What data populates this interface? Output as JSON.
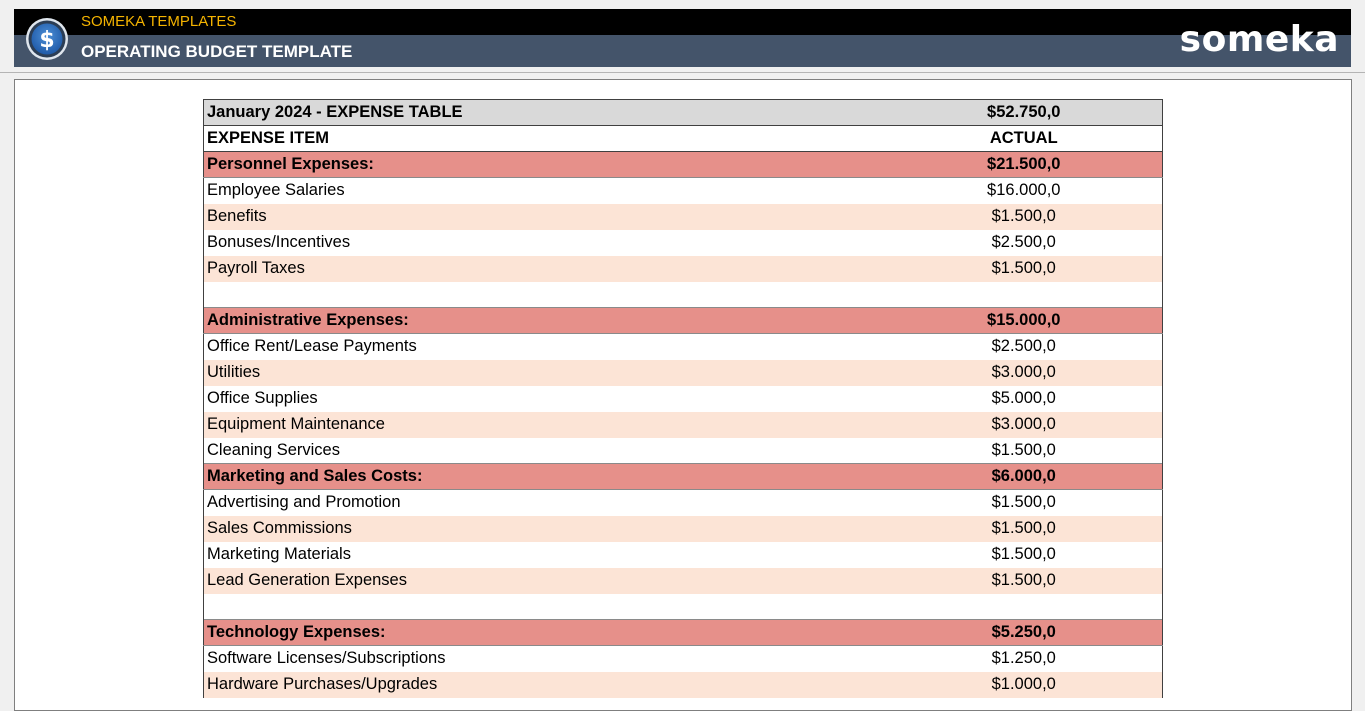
{
  "header": {
    "brand": "SOMEKA TEMPLATES",
    "title": "OPERATING BUDGET TEMPLATE",
    "logo_text": "someka",
    "icon": "dollar-coin-icon",
    "colors": {
      "black": "#000000",
      "slate": "#44546a",
      "brand": "#f5b400",
      "category": "#e6908a",
      "alt_row": "#fce4d6"
    }
  },
  "table": {
    "title": "January 2024 - EXPENSE TABLE",
    "total": "$52.750,0",
    "col_item": "EXPENSE ITEM",
    "col_actual": "ACTUAL",
    "rows": [
      {
        "type": "cat",
        "label": "Personnel Expenses:",
        "value": "$21.500,0"
      },
      {
        "type": "item",
        "label": "Employee Salaries",
        "value": "$16.000,0"
      },
      {
        "type": "item",
        "label": "Benefits",
        "value": "$1.500,0"
      },
      {
        "type": "item",
        "label": "Bonuses/Incentives",
        "value": "$2.500,0"
      },
      {
        "type": "item",
        "label": "Payroll Taxes",
        "value": "$1.500,0"
      },
      {
        "type": "blank",
        "label": "",
        "value": ""
      },
      {
        "type": "cat",
        "label": "Administrative Expenses:",
        "value": "$15.000,0"
      },
      {
        "type": "item",
        "label": "Office Rent/Lease Payments",
        "value": "$2.500,0"
      },
      {
        "type": "item",
        "label": "Utilities",
        "value": "$3.000,0"
      },
      {
        "type": "item",
        "label": "Office Supplies",
        "value": "$5.000,0"
      },
      {
        "type": "item",
        "label": "Equipment Maintenance",
        "value": "$3.000,0"
      },
      {
        "type": "item",
        "label": "Cleaning Services",
        "value": "$1.500,0"
      },
      {
        "type": "cat",
        "label": "Marketing and Sales Costs:",
        "value": "$6.000,0"
      },
      {
        "type": "item",
        "label": "Advertising and Promotion",
        "value": "$1.500,0"
      },
      {
        "type": "item",
        "label": "Sales Commissions",
        "value": "$1.500,0"
      },
      {
        "type": "item",
        "label": "Marketing Materials",
        "value": "$1.500,0"
      },
      {
        "type": "item",
        "label": "Lead Generation Expenses",
        "value": "$1.500,0"
      },
      {
        "type": "blank",
        "label": "",
        "value": ""
      },
      {
        "type": "cat",
        "label": "Technology Expenses:",
        "value": "$5.250,0"
      },
      {
        "type": "item",
        "label": "Software Licenses/Subscriptions",
        "value": "$1.250,0"
      },
      {
        "type": "item",
        "label": "Hardware Purchases/Upgrades",
        "value": "$1.000,0"
      }
    ]
  }
}
